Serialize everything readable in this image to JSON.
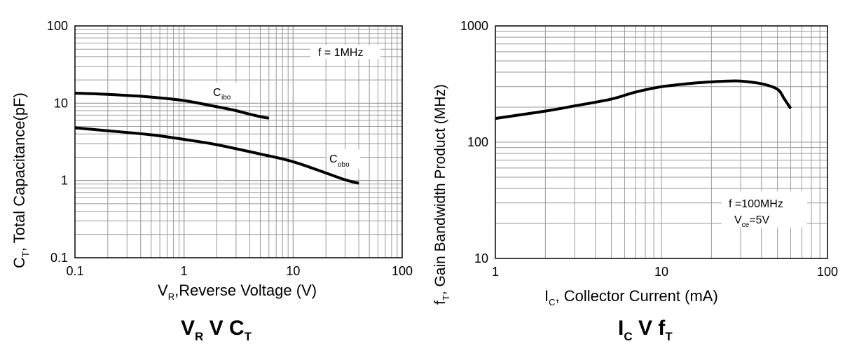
{
  "chart_data": [
    {
      "type": "line",
      "title_main": "V",
      "title_sub1": "R",
      "title_mid": " V C",
      "title_sub2": "T",
      "x_scale": "log",
      "y_scale": "log",
      "xlim": [
        0.1,
        100
      ],
      "ylim": [
        0.1,
        100
      ],
      "x_ticks": [
        "0.1",
        "1",
        "10",
        "100"
      ],
      "y_ticks": [
        "0.1",
        "1",
        "10",
        "100"
      ],
      "xlabel_main": "V",
      "xlabel_sub": "R",
      "xlabel_rest": ",Reverse Voltage (V)",
      "ylabel_main": "C",
      "ylabel_sub": "T",
      "ylabel_rest": ", Total  Capacitance(pF)",
      "annotation": "f = 1MHz",
      "grid": true,
      "series": [
        {
          "name_main": "C",
          "name_sub": "ibo",
          "x": [
            0.1,
            0.2,
            0.5,
            1,
            2,
            3,
            4,
            5,
            6
          ],
          "y": [
            13.5,
            13.0,
            12.0,
            10.8,
            9.0,
            8.0,
            7.2,
            6.7,
            6.4
          ]
        },
        {
          "name_main": "C",
          "name_sub": "obo",
          "x": [
            0.1,
            0.2,
            0.5,
            1,
            2,
            5,
            10,
            20,
            30,
            40
          ],
          "y": [
            4.8,
            4.4,
            3.9,
            3.4,
            2.9,
            2.2,
            1.75,
            1.25,
            1.02,
            0.92
          ]
        }
      ]
    },
    {
      "type": "line",
      "title_main": "I",
      "title_sub1": "C",
      "title_mid": " V f",
      "title_sub2": "T",
      "x_scale": "log",
      "y_scale": "log",
      "xlim": [
        1,
        100
      ],
      "ylim": [
        10,
        1000
      ],
      "x_ticks": [
        "1",
        "10",
        "100"
      ],
      "y_ticks": [
        "10",
        "100",
        "1000"
      ],
      "xlabel_main": "I",
      "xlabel_sub": "C",
      "xlabel_rest": ", Collector Current (mA)",
      "ylabel_main": "f",
      "ylabel_sub": "T",
      "ylabel_rest": ", Gain Bandwidth Product (MHz)",
      "annotation_line1": "f =100MHz",
      "annotation_line2_main": "V",
      "annotation_line2_sub": "ce",
      "annotation_line2_rest": "=5V",
      "grid": true,
      "series": [
        {
          "x": [
            1,
            2,
            3,
            5,
            7,
            10,
            15,
            20,
            25,
            30,
            40,
            50,
            55,
            60
          ],
          "y": [
            160,
            185,
            205,
            235,
            270,
            300,
            320,
            330,
            335,
            335,
            318,
            285,
            235,
            195
          ]
        }
      ]
    }
  ]
}
